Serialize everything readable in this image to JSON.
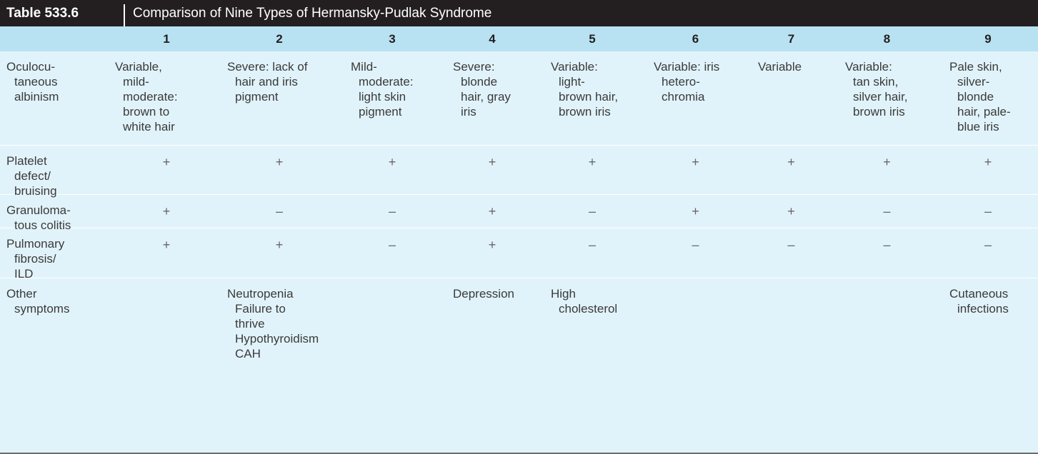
{
  "table": {
    "number": "Table 533.6",
    "title": "Comparison of Nine Types of Hermansky-Pudlak Syndrome",
    "columns": [
      "1",
      "2",
      "3",
      "4",
      "5",
      "6",
      "7",
      "8",
      "9"
    ],
    "rows": [
      {
        "label": [
          "Oculocu-",
          "taneous",
          "albinism"
        ],
        "cells": [
          [
            "Variable,",
            "mild-",
            "moderate:",
            "brown to",
            "white hair"
          ],
          [
            "Severe: lack of",
            "hair and iris",
            "pigment"
          ],
          [
            "Mild-",
            "moderate:",
            "light skin",
            "pigment"
          ],
          [
            "Severe:",
            "blonde",
            "hair, gray",
            "iris"
          ],
          [
            "Variable:",
            "light-",
            "brown hair,",
            "brown iris"
          ],
          [
            "Variable: iris",
            "hetero-",
            "chromia"
          ],
          [
            "Variable"
          ],
          [
            "Variable:",
            "tan skin,",
            "silver hair,",
            "brown iris"
          ],
          [
            "Pale skin,",
            "silver-",
            "blonde",
            "hair, pale-",
            "blue iris"
          ]
        ]
      },
      {
        "label": [
          "Platelet",
          "defect/",
          "bruising"
        ],
        "cells": [
          [
            "+"
          ],
          [
            "+"
          ],
          [
            "+"
          ],
          [
            "+"
          ],
          [
            "+"
          ],
          [
            "+"
          ],
          [
            "+"
          ],
          [
            "+"
          ],
          [
            "+"
          ]
        ]
      },
      {
        "label": [
          "Granuloma-",
          "tous colitis"
        ],
        "cells": [
          [
            "+"
          ],
          [
            "–"
          ],
          [
            "–"
          ],
          [
            "+"
          ],
          [
            "–"
          ],
          [
            "+"
          ],
          [
            "+"
          ],
          [
            "–"
          ],
          [
            "–"
          ]
        ]
      },
      {
        "label": [
          "Pulmonary",
          "fibrosis/",
          "ILD"
        ],
        "cells": [
          [
            "+"
          ],
          [
            "+"
          ],
          [
            "–"
          ],
          [
            "+"
          ],
          [
            "–"
          ],
          [
            "–"
          ],
          [
            "–"
          ],
          [
            "–"
          ],
          [
            "–"
          ]
        ]
      },
      {
        "label": [
          "Other",
          "symptoms"
        ],
        "cells": [
          [],
          [
            "Neutropenia",
            "Failure to",
            "thrive",
            "Hypothyroidism",
            "CAH"
          ],
          [],
          [
            "Depression"
          ],
          [
            "High",
            "cholesterol"
          ],
          [],
          [],
          [],
          [
            "Cutaneous",
            "infections"
          ]
        ]
      }
    ]
  },
  "colors": {
    "header_bg": "#231f20",
    "column_header_bg": "#b8e2f2",
    "body_bg": "#e1f3fa"
  }
}
